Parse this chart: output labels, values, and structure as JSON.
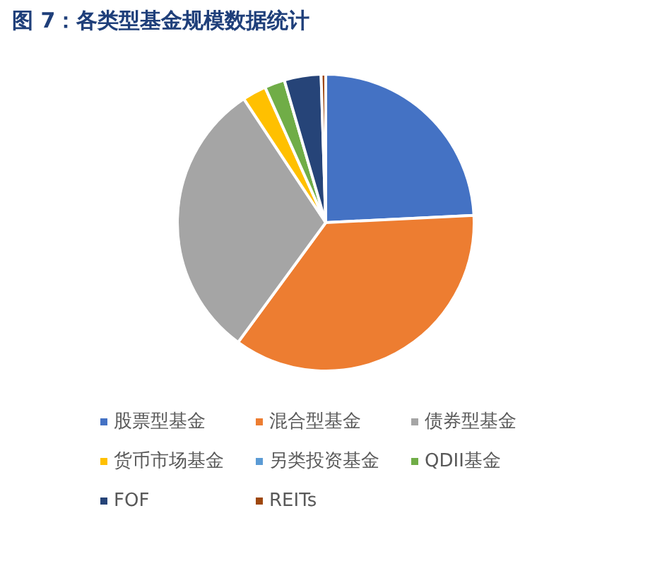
{
  "chart_data": {
    "type": "pie",
    "title": "图 7：各类型基金规模数据统计",
    "categories": [
      "股票型基金",
      "混合型基金",
      "债券型基金",
      "货币市场基金",
      "另类投资基金",
      "QDII基金",
      "FOF",
      "REITs"
    ],
    "values": [
      24.2,
      35.8,
      30.6,
      2.6,
      null,
      2.2,
      4.0,
      0.5
    ],
    "colors": [
      "#4472c4",
      "#ed7d31",
      "#a5a5a5",
      "#ffc000",
      "#5b9bd5",
      "#70ad47",
      "#264478",
      "#9e480e"
    ],
    "legend": "bottom"
  }
}
